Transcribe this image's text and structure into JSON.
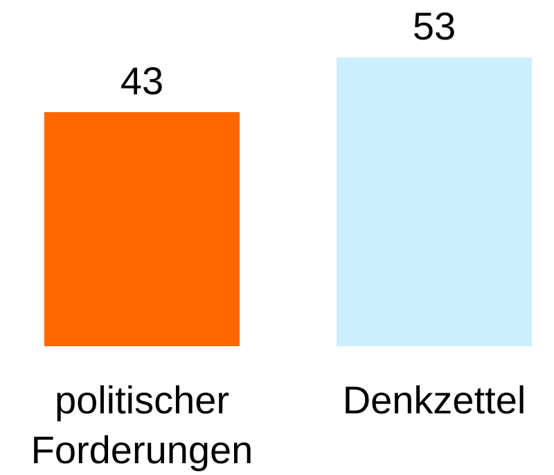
{
  "chart_data": {
    "type": "bar",
    "categories": [
      "politischer Forderungen",
      "Denkzettel"
    ],
    "values": [
      43,
      53
    ],
    "colors": [
      "#ff6600",
      "#cceeff"
    ]
  }
}
